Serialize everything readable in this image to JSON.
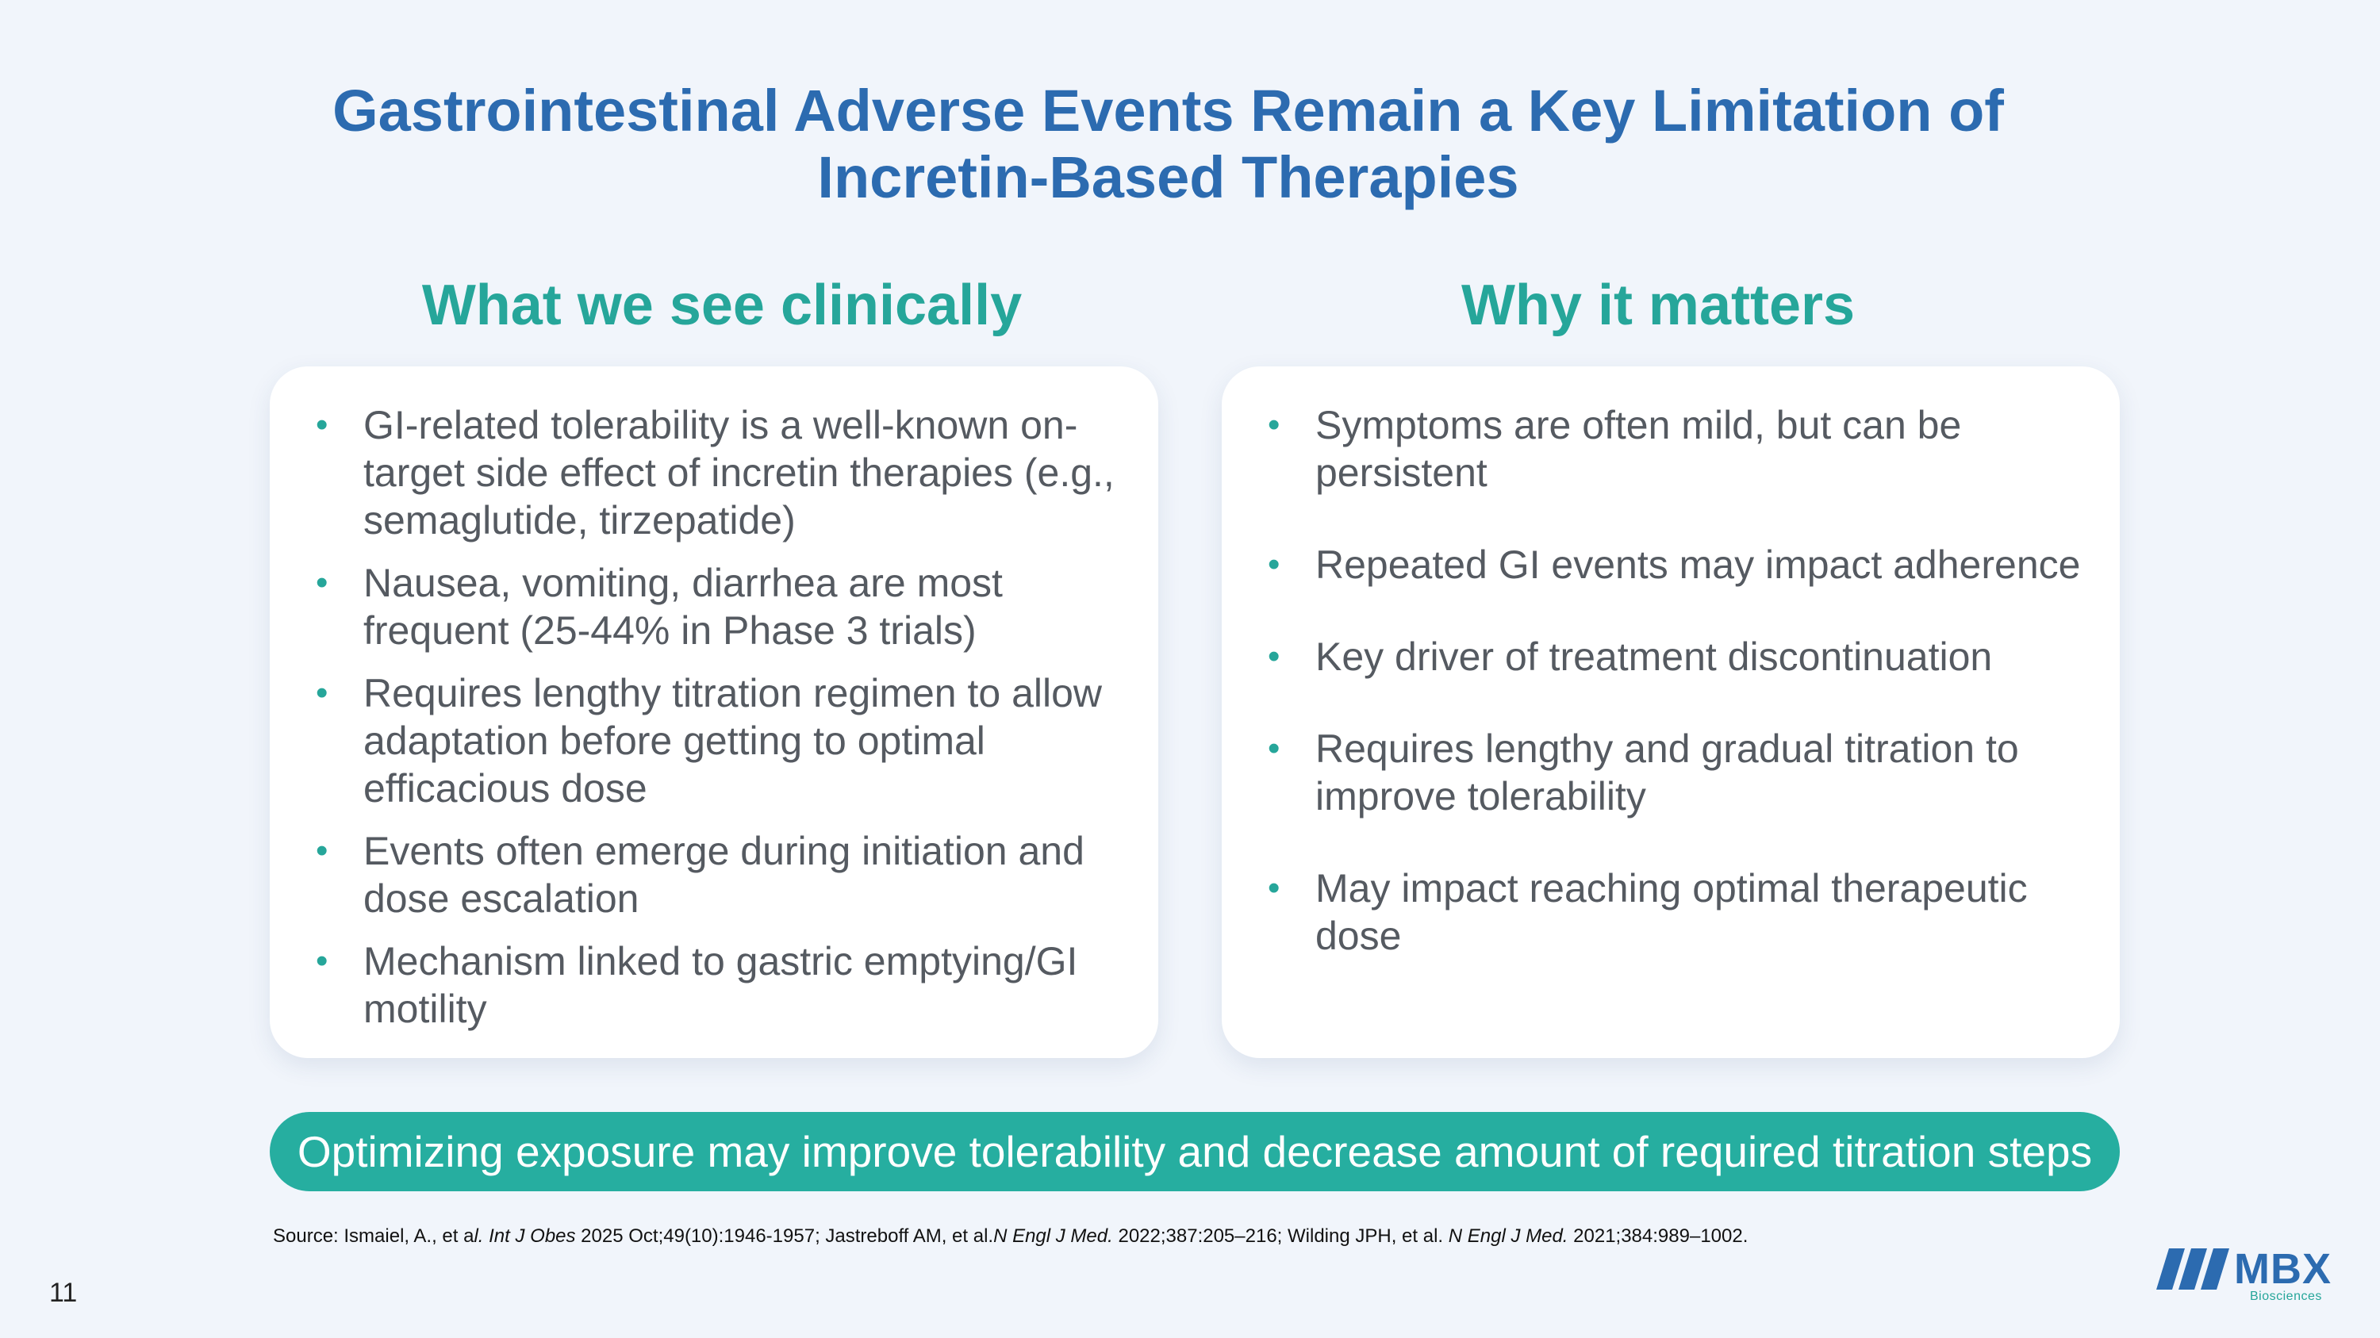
{
  "slide": {
    "title_line1": "Gastrointestinal Adverse Events Remain a Key Limitation of",
    "title_line2": "Incretin-Based Therapies",
    "left_heading": "What we see clinically",
    "right_heading": "Why it matters",
    "left_bullets": [
      "GI-related tolerability is a well-known on-target side effect of incretin therapies (e.g., semaglutide, tirzepatide)",
      "Nausea, vomiting, diarrhea are most frequent (25-44% in Phase 3 trials)",
      "Requires lengthy titration regimen to allow adaptation before getting to optimal efficacious dose",
      "Events often emerge during initiation and dose escalation",
      "Mechanism linked to gastric emptying/GI motility"
    ],
    "right_bullets": [
      "Symptoms are often mild, but can be persistent",
      "Repeated GI events may impact adherence",
      "Key driver of treatment discontinuation",
      "Requires lengthy and gradual titration to improve tolerability",
      "May impact reaching optimal therapeutic dose"
    ],
    "banner": "Optimizing exposure may improve tolerability and decrease amount of required titration steps",
    "bullet_glyph": "•"
  },
  "source": {
    "prefix": "Source: Ismaiel, A., et a",
    "l_char": "l.",
    "journal1": "Int J Obes",
    "cite1": " 2025 Oct;49(10):1946-1957; Jastreboff AM, et al.",
    "journal2": "N Engl J Med.",
    "cite2": " 2022;387:205–216; Wilding JPH, et al.",
    "journal3": "N Engl J Med.",
    "cite3": " 2021;384:989–1002."
  },
  "footer": {
    "page_number": "11",
    "logo_text": "MBX",
    "logo_subtext": "Biosciences"
  },
  "colors": {
    "title": "#2c6bb0",
    "heading": "#26a69a",
    "banner": "#26aea0",
    "background": "#f1f5fb"
  }
}
